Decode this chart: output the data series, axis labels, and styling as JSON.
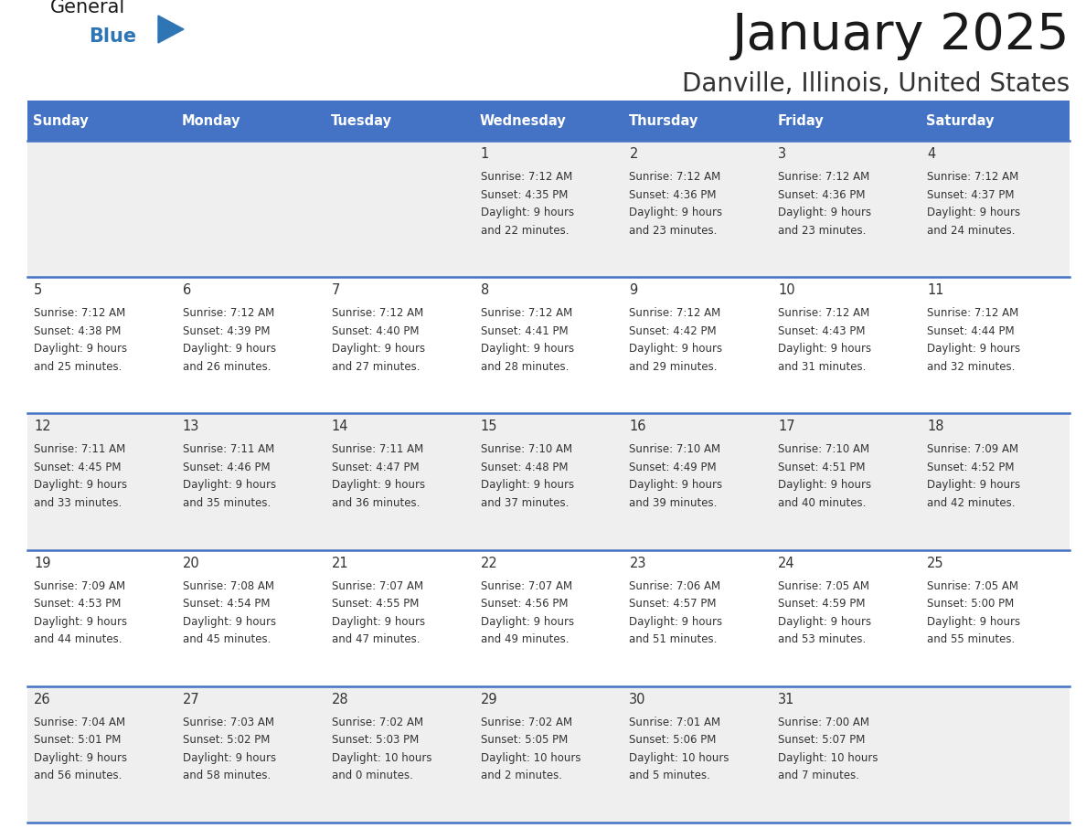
{
  "title": "January 2025",
  "subtitle": "Danville, Illinois, United States",
  "days_of_week": [
    "Sunday",
    "Monday",
    "Tuesday",
    "Wednesday",
    "Thursday",
    "Friday",
    "Saturday"
  ],
  "header_bg": "#4472C4",
  "header_text_color": "#FFFFFF",
  "row_bg_even": "#EFEFEF",
  "row_bg_odd": "#FFFFFF",
  "separator_color": "#4472C4",
  "text_color": "#333333",
  "calendar_data": [
    [
      {
        "day": null,
        "sunrise": null,
        "sunset": null,
        "daylight": null
      },
      {
        "day": null,
        "sunrise": null,
        "sunset": null,
        "daylight": null
      },
      {
        "day": null,
        "sunrise": null,
        "sunset": null,
        "daylight": null
      },
      {
        "day": 1,
        "sunrise": "7:12 AM",
        "sunset": "4:35 PM",
        "daylight": "9 hours\nand 22 minutes."
      },
      {
        "day": 2,
        "sunrise": "7:12 AM",
        "sunset": "4:36 PM",
        "daylight": "9 hours\nand 23 minutes."
      },
      {
        "day": 3,
        "sunrise": "7:12 AM",
        "sunset": "4:36 PM",
        "daylight": "9 hours\nand 23 minutes."
      },
      {
        "day": 4,
        "sunrise": "7:12 AM",
        "sunset": "4:37 PM",
        "daylight": "9 hours\nand 24 minutes."
      }
    ],
    [
      {
        "day": 5,
        "sunrise": "7:12 AM",
        "sunset": "4:38 PM",
        "daylight": "9 hours\nand 25 minutes."
      },
      {
        "day": 6,
        "sunrise": "7:12 AM",
        "sunset": "4:39 PM",
        "daylight": "9 hours\nand 26 minutes."
      },
      {
        "day": 7,
        "sunrise": "7:12 AM",
        "sunset": "4:40 PM",
        "daylight": "9 hours\nand 27 minutes."
      },
      {
        "day": 8,
        "sunrise": "7:12 AM",
        "sunset": "4:41 PM",
        "daylight": "9 hours\nand 28 minutes."
      },
      {
        "day": 9,
        "sunrise": "7:12 AM",
        "sunset": "4:42 PM",
        "daylight": "9 hours\nand 29 minutes."
      },
      {
        "day": 10,
        "sunrise": "7:12 AM",
        "sunset": "4:43 PM",
        "daylight": "9 hours\nand 31 minutes."
      },
      {
        "day": 11,
        "sunrise": "7:12 AM",
        "sunset": "4:44 PM",
        "daylight": "9 hours\nand 32 minutes."
      }
    ],
    [
      {
        "day": 12,
        "sunrise": "7:11 AM",
        "sunset": "4:45 PM",
        "daylight": "9 hours\nand 33 minutes."
      },
      {
        "day": 13,
        "sunrise": "7:11 AM",
        "sunset": "4:46 PM",
        "daylight": "9 hours\nand 35 minutes."
      },
      {
        "day": 14,
        "sunrise": "7:11 AM",
        "sunset": "4:47 PM",
        "daylight": "9 hours\nand 36 minutes."
      },
      {
        "day": 15,
        "sunrise": "7:10 AM",
        "sunset": "4:48 PM",
        "daylight": "9 hours\nand 37 minutes."
      },
      {
        "day": 16,
        "sunrise": "7:10 AM",
        "sunset": "4:49 PM",
        "daylight": "9 hours\nand 39 minutes."
      },
      {
        "day": 17,
        "sunrise": "7:10 AM",
        "sunset": "4:51 PM",
        "daylight": "9 hours\nand 40 minutes."
      },
      {
        "day": 18,
        "sunrise": "7:09 AM",
        "sunset": "4:52 PM",
        "daylight": "9 hours\nand 42 minutes."
      }
    ],
    [
      {
        "day": 19,
        "sunrise": "7:09 AM",
        "sunset": "4:53 PM",
        "daylight": "9 hours\nand 44 minutes."
      },
      {
        "day": 20,
        "sunrise": "7:08 AM",
        "sunset": "4:54 PM",
        "daylight": "9 hours\nand 45 minutes."
      },
      {
        "day": 21,
        "sunrise": "7:07 AM",
        "sunset": "4:55 PM",
        "daylight": "9 hours\nand 47 minutes."
      },
      {
        "day": 22,
        "sunrise": "7:07 AM",
        "sunset": "4:56 PM",
        "daylight": "9 hours\nand 49 minutes."
      },
      {
        "day": 23,
        "sunrise": "7:06 AM",
        "sunset": "4:57 PM",
        "daylight": "9 hours\nand 51 minutes."
      },
      {
        "day": 24,
        "sunrise": "7:05 AM",
        "sunset": "4:59 PM",
        "daylight": "9 hours\nand 53 minutes."
      },
      {
        "day": 25,
        "sunrise": "7:05 AM",
        "sunset": "5:00 PM",
        "daylight": "9 hours\nand 55 minutes."
      }
    ],
    [
      {
        "day": 26,
        "sunrise": "7:04 AM",
        "sunset": "5:01 PM",
        "daylight": "9 hours\nand 56 minutes."
      },
      {
        "day": 27,
        "sunrise": "7:03 AM",
        "sunset": "5:02 PM",
        "daylight": "9 hours\nand 58 minutes."
      },
      {
        "day": 28,
        "sunrise": "7:02 AM",
        "sunset": "5:03 PM",
        "daylight": "10 hours\nand 0 minutes."
      },
      {
        "day": 29,
        "sunrise": "7:02 AM",
        "sunset": "5:05 PM",
        "daylight": "10 hours\nand 2 minutes."
      },
      {
        "day": 30,
        "sunrise": "7:01 AM",
        "sunset": "5:06 PM",
        "daylight": "10 hours\nand 5 minutes."
      },
      {
        "day": 31,
        "sunrise": "7:00 AM",
        "sunset": "5:07 PM",
        "daylight": "10 hours\nand 7 minutes."
      },
      {
        "day": null,
        "sunrise": null,
        "sunset": null,
        "daylight": null
      }
    ]
  ],
  "logo_triangle_color": "#2E75B6",
  "fig_width": 11.88,
  "fig_height": 9.18,
  "dpi": 100
}
